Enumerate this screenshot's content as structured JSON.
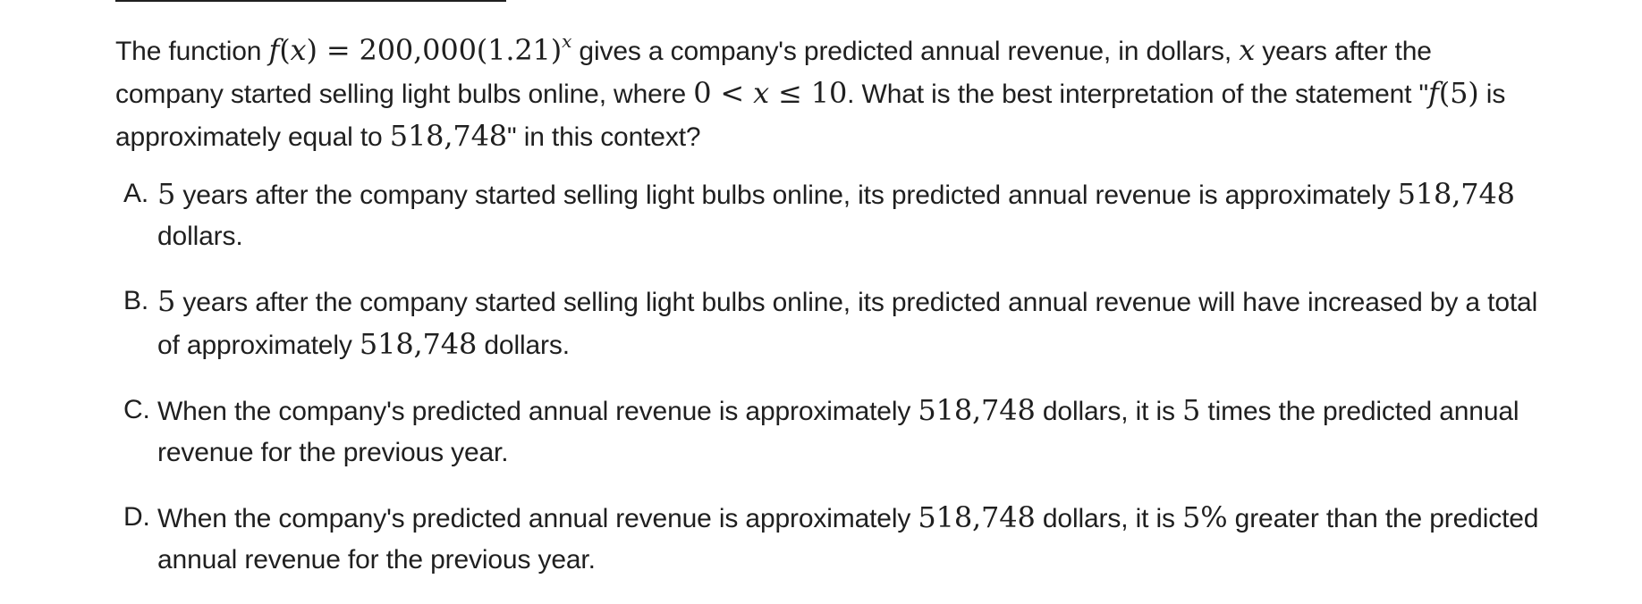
{
  "question": {
    "t1": "The function ",
    "fx": "f",
    "open": "(",
    "xvar": "x",
    "close": ")",
    "eq": " = 200,000(1.21)",
    "exp": "x",
    "t2": " gives a company's predicted annual revenue, in dollars, ",
    "x2": "x",
    "t3": " years after the company started selling light bulbs online, where ",
    "ineq_a": "0 < ",
    "ineq_x": "x",
    "ineq_b": " ≤ 10",
    "t4": ". What is the best interpretation of the statement \"",
    "f5_f": "f",
    "f5_rest": "(5)",
    "t5": " is approximately equal to ",
    "val": "518,748",
    "t6": "\" in this context?"
  },
  "choices": [
    {
      "letter": "A.",
      "parts": [
        "",
        "5",
        " years after the company started selling light bulbs online, its predicted annual revenue is approximately ",
        "518,748",
        " dollars."
      ]
    },
    {
      "letter": "B.",
      "parts": [
        "",
        "5",
        " years after the company started selling light bulbs online, its predicted annual revenue will have increased by a total of approximately ",
        "518,748",
        " dollars."
      ]
    },
    {
      "letter": "C.",
      "parts": [
        "When the company's predicted annual revenue is approximately ",
        "518,748",
        " dollars, it is ",
        "5",
        " times the predicted annual revenue for the previous year."
      ]
    },
    {
      "letter": "D.",
      "parts": [
        "When the company's predicted annual revenue is approximately ",
        "518,748",
        " dollars, it is ",
        "5%",
        " greater than the predicted annual revenue for the previous year."
      ]
    }
  ]
}
